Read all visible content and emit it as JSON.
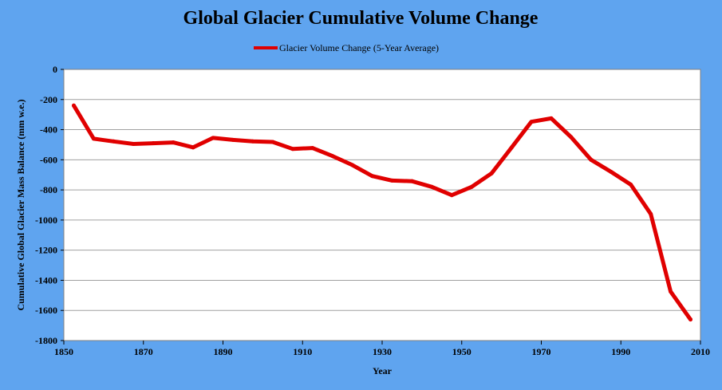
{
  "chart_data": {
    "type": "line",
    "title": "Global Glacier Cumulative Volume Change",
    "xlabel": "Year",
    "ylabel": "Cumulative Global Glacier Mass Balance (mm w.e.)",
    "xlim": [
      1850,
      2010
    ],
    "ylim": [
      -1800,
      0
    ],
    "x_ticks": [
      1850,
      1870,
      1890,
      1910,
      1930,
      1950,
      1970,
      1990,
      2010
    ],
    "y_ticks": [
      0,
      -200,
      -400,
      -600,
      -800,
      -1000,
      -1200,
      -1400,
      -1600,
      -1800
    ],
    "grid": true,
    "legend_position": "top-center",
    "series": [
      {
        "name": "Glacier Volume Change (5-Year Average)",
        "color": "#e00000",
        "x": [
          1852.5,
          1857.5,
          1862.5,
          1867.5,
          1872.5,
          1877.5,
          1882.5,
          1887.5,
          1892.5,
          1897.5,
          1902.5,
          1907.5,
          1912.5,
          1917.5,
          1922.5,
          1927.5,
          1932.5,
          1937.5,
          1942.5,
          1947.5,
          1952.5,
          1957.5,
          1962.5,
          1967.5,
          1972.5,
          1977.5,
          1982.5,
          1987.5,
          1992.5,
          1997.5,
          2002.5,
          2007.5
        ],
        "y": [
          -240,
          -460,
          -478,
          -495,
          -490,
          -485,
          -518,
          -455,
          -468,
          -478,
          -482,
          -528,
          -522,
          -575,
          -635,
          -708,
          -738,
          -742,
          -780,
          -835,
          -780,
          -690,
          -520,
          -348,
          -325,
          -450,
          -600,
          -680,
          -765,
          -960,
          -1475,
          -1660
        ]
      }
    ]
  },
  "colors": {
    "background": "#5fa4ef",
    "plot_area": "#ffffff",
    "gridline": "#a0a0a0",
    "series_line": "#e00000"
  }
}
